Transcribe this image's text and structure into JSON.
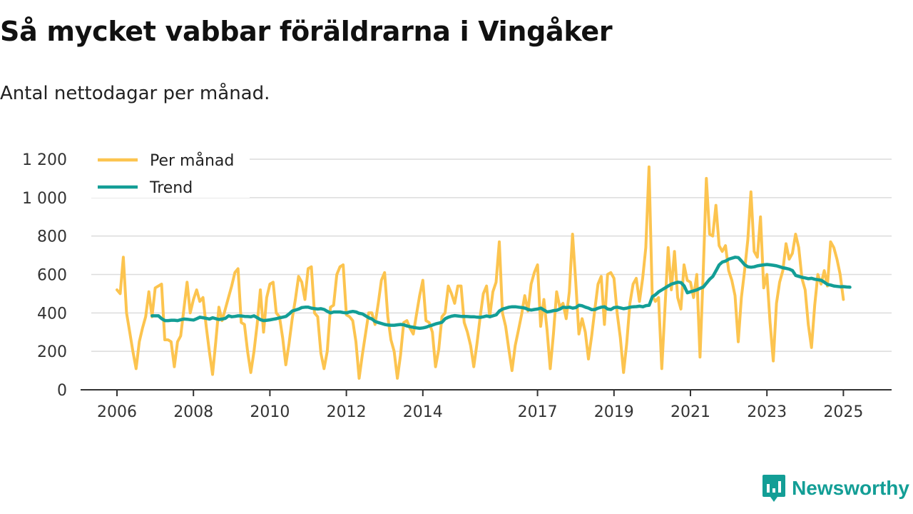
{
  "header": {
    "title": "Så mycket vabbar föräldrarna i Vingåker",
    "subtitle": "Antal nettodagar per månad."
  },
  "brand": {
    "name": "Newsworthy",
    "icon": "bar-chart-speech-icon",
    "color": "#139e96"
  },
  "chart_data": {
    "type": "line",
    "title": "Så mycket vabbar föräldrarna i Vingåker",
    "subtitle": "Antal nettodagar per månad.",
    "xlabel": "",
    "ylabel": "",
    "x_range": [
      2006,
      2025.4
    ],
    "ylim": [
      0,
      1200
    ],
    "y_ticks": [
      0,
      200,
      400,
      600,
      800,
      1000,
      1200
    ],
    "y_tick_labels": [
      "0",
      "200",
      "400",
      "600",
      "800",
      "1 000",
      "1 200"
    ],
    "x_ticks": [
      2006,
      2008,
      2010,
      2012,
      2014,
      2017,
      2019,
      2021,
      2023,
      2025
    ],
    "x_tick_labels": [
      "2006",
      "2008",
      "2010",
      "2012",
      "2014",
      "2017",
      "2019",
      "2021",
      "2023",
      "2025"
    ],
    "grid": true,
    "legend_position": "top-left",
    "series": [
      {
        "name": "Per månad",
        "color": "#fcc44f",
        "x_start": 2006.0,
        "x_step": 0.08333,
        "values": [
          520,
          500,
          690,
          400,
          300,
          200,
          110,
          250,
          320,
          380,
          510,
          380,
          530,
          540,
          550,
          260,
          260,
          250,
          120,
          250,
          280,
          420,
          560,
          400,
          470,
          520,
          460,
          480,
          330,
          200,
          80,
          250,
          430,
          360,
          420,
          480,
          540,
          610,
          630,
          350,
          340,
          200,
          90,
          200,
          340,
          520,
          300,
          480,
          550,
          560,
          400,
          380,
          270,
          130,
          240,
          370,
          470,
          590,
          560,
          470,
          630,
          640,
          400,
          380,
          190,
          110,
          200,
          430,
          440,
          600,
          640,
          650,
          390,
          380,
          360,
          250,
          60,
          180,
          290,
          400,
          400,
          340,
          450,
          570,
          610,
          380,
          260,
          200,
          60,
          180,
          350,
          360,
          320,
          290,
          390,
          490,
          570,
          360,
          350,
          300,
          120,
          210,
          380,
          400,
          540,
          500,
          450,
          540,
          540,
          350,
          300,
          230,
          120,
          240,
          380,
          500,
          540,
          380,
          510,
          560,
          770,
          400,
          330,
          210,
          100,
          230,
          310,
          390,
          490,
          410,
          550,
          610,
          650,
          330,
          470,
          310,
          110,
          290,
          510,
          430,
          450,
          370,
          510,
          810,
          560,
          290,
          370,
          300,
          160,
          280,
          420,
          550,
          590,
          340,
          600,
          610,
          580,
          400,
          270,
          90,
          240,
          450,
          550,
          580,
          460,
          580,
          740,
          1160,
          490,
          460,
          480,
          110,
          420,
          740,
          520,
          720,
          480,
          420,
          650,
          570,
          560,
          480,
          600,
          170,
          600,
          1100,
          810,
          800,
          960,
          750,
          720,
          750,
          620,
          570,
          490,
          250,
          480,
          620,
          780,
          1030,
          720,
          690,
          900,
          530,
          600,
          350,
          150,
          450,
          560,
          620,
          760,
          680,
          710,
          810,
          740,
          580,
          520,
          340,
          220,
          440,
          600,
          550,
          620,
          540,
          770,
          740,
          680,
          600,
          470
        ]
      },
      {
        "name": "Trend",
        "color": "#139e96",
        "x_start": 2006.92,
        "x_step": 0.08333,
        "values": [
          385,
          385,
          385,
          370,
          360,
          360,
          362,
          362,
          360,
          365,
          368,
          367,
          365,
          363,
          370,
          378,
          375,
          372,
          368,
          375,
          370,
          366,
          368,
          372,
          385,
          380,
          382,
          385,
          384,
          382,
          381,
          380,
          385,
          375,
          365,
          360,
          362,
          364,
          367,
          370,
          375,
          378,
          382,
          395,
          410,
          415,
          420,
          428,
          430,
          430,
          425,
          422,
          420,
          422,
          418,
          408,
          400,
          405,
          405,
          405,
          402,
          400,
          405,
          408,
          405,
          398,
          395,
          385,
          375,
          368,
          355,
          350,
          345,
          340,
          337,
          336,
          336,
          338,
          340,
          338,
          332,
          328,
          325,
          322,
          320,
          322,
          326,
          332,
          337,
          343,
          347,
          352,
          370,
          378,
          383,
          386,
          384,
          382,
          382,
          381,
          380,
          380,
          378,
          377,
          380,
          384,
          380,
          385,
          390,
          410,
          420,
          425,
          430,
          432,
          432,
          430,
          428,
          425,
          418,
          415,
          418,
          420,
          425,
          415,
          405,
          408,
          412,
          414,
          420,
          430,
          428,
          430,
          425,
          428,
          440,
          437,
          430,
          425,
          417,
          418,
          425,
          430,
          432,
          420,
          418,
          428,
          430,
          426,
          422,
          425,
          430,
          432,
          433,
          435,
          432,
          438,
          440,
          485,
          495,
          510,
          520,
          530,
          540,
          550,
          555,
          560,
          558,
          540,
          505,
          510,
          515,
          520,
          528,
          535,
          555,
          575,
          590,
          620,
          650,
          665,
          670,
          680,
          685,
          690,
          688,
          670,
          650,
          640,
          638,
          640,
          645,
          648,
          650,
          652,
          650,
          648,
          645,
          640,
          635,
          632,
          628,
          620,
          595,
          590,
          585,
          582,
          578,
          580,
          575,
          573,
          570,
          560,
          548,
          545,
          540,
          538,
          536,
          537,
          535,
          534
        ]
      }
    ]
  }
}
